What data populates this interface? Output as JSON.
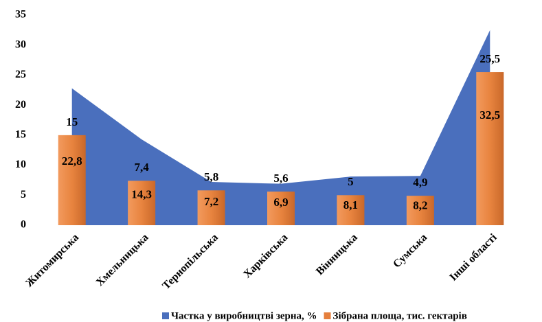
{
  "chart_data": {
    "type": "combo",
    "categories": [
      "Житомирська",
      "Хмельницька",
      "Тернопільська",
      "Харківська",
      "Вінницька",
      "Сумська",
      "Інші області"
    ],
    "series": [
      {
        "name": "Частка у виробництві зерна, %",
        "type": "area",
        "color": "#4a6fbd",
        "values": [
          22.8,
          14.3,
          7.2,
          6.9,
          8.1,
          8.2,
          32.5
        ],
        "value_labels": [
          "22,8",
          "14,3",
          "7,2",
          "6,9",
          "8,1",
          "8,2",
          "32,5"
        ]
      },
      {
        "name": "Зібрана площа, тис. гектарів",
        "type": "bar",
        "color": "#e57f3c",
        "values": [
          15,
          7.4,
          5.8,
          5.6,
          5,
          4.9,
          25.5
        ],
        "value_labels": [
          "15",
          "7,4",
          "5,8",
          "5,6",
          "5",
          "4,9",
          "25,5"
        ]
      }
    ],
    "ylim": [
      0,
      35
    ],
    "yticks": [
      0,
      5,
      10,
      15,
      20,
      25,
      30,
      35
    ],
    "grid": false,
    "legend": "bottom"
  }
}
